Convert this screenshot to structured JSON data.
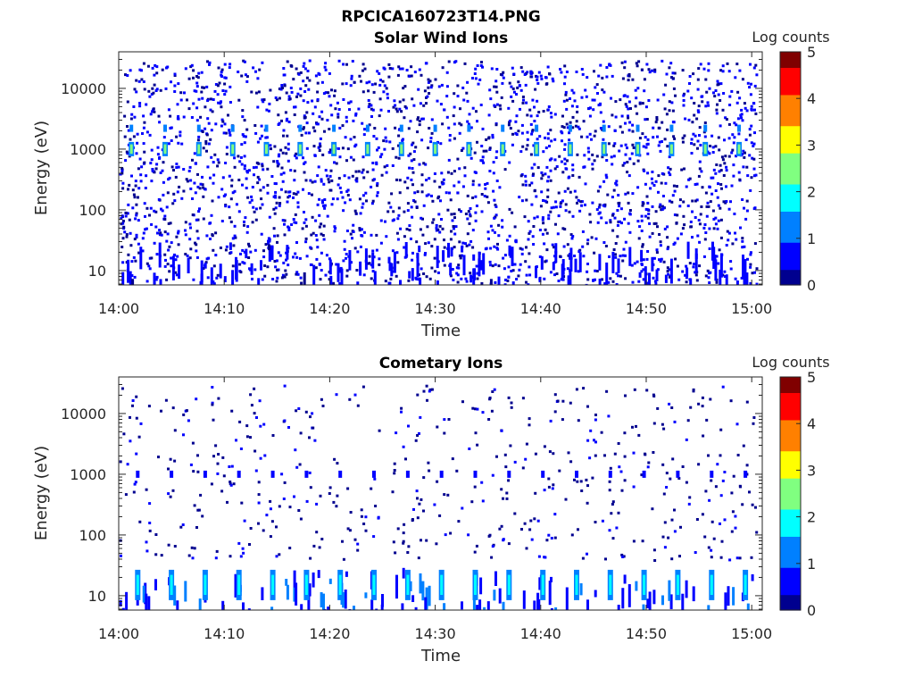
{
  "figure_title": "RPCICA160723T14.PNG",
  "colormap": [
    "#00008f",
    "#0000ff",
    "#0080ff",
    "#00ffff",
    "#80ff80",
    "#ffff00",
    "#ff8000",
    "#ff0000",
    "#800000"
  ],
  "chart_data": [
    {
      "type": "heatmap",
      "title": "Solar Wind Ions",
      "xlabel": "Time",
      "ylabel": "Energy (eV)",
      "x_ticks": [
        "14:00",
        "14:10",
        "14:20",
        "14:30",
        "14:40",
        "14:50",
        "15:00"
      ],
      "x_range_minutes": [
        0,
        61
      ],
      "y_scale": "log",
      "y_ticks": [
        "10",
        "100",
        "1000",
        "10000"
      ],
      "ylim": [
        5.8,
        40000
      ],
      "colorbar": {
        "label": "Log counts",
        "ticks": [
          "0",
          "1",
          "2",
          "3",
          "4",
          "5"
        ],
        "range": [
          0,
          5
        ]
      },
      "bursts": {
        "period_minutes": 3.2,
        "first_minute": 1.2,
        "count": 19,
        "peak_energy_eV": 1000,
        "peak_log_counts": 2.3,
        "secondary_energy_eV": 2200,
        "secondary_log_counts": 1.2
      },
      "background": {
        "energy_range_eV": [
          6,
          30000
        ],
        "log_counts": 0.2
      },
      "low_energy_band": {
        "energy_range_eV": [
          6,
          30
        ],
        "log_counts": 0.3
      }
    },
    {
      "type": "heatmap",
      "title": "Cometary Ions",
      "xlabel": "Time",
      "ylabel": "Energy (eV)",
      "x_ticks": [
        "14:00",
        "14:10",
        "14:20",
        "14:30",
        "14:40",
        "14:50",
        "15:00"
      ],
      "x_range_minutes": [
        0,
        61
      ],
      "y_scale": "log",
      "y_ticks": [
        "10",
        "100",
        "1000",
        "10000"
      ],
      "ylim": [
        5.8,
        40000
      ],
      "colorbar": {
        "label": "Log counts",
        "ticks": [
          "0",
          "1",
          "2",
          "3",
          "4",
          "5"
        ],
        "range": [
          0,
          5
        ]
      },
      "bursts": {
        "period_minutes": 3.2,
        "first_minute": 1.8,
        "count": 19,
        "peak_energy_eV": 15,
        "peak_log_counts": 1.8,
        "secondary_energy_eV": 1000,
        "secondary_log_counts": 0.9
      },
      "background": {
        "energy_range_eV": [
          40,
          30000
        ],
        "log_counts": 0.1
      },
      "low_energy_band": {
        "energy_range_eV": [
          6,
          30
        ],
        "log_counts": 0.6
      }
    }
  ]
}
